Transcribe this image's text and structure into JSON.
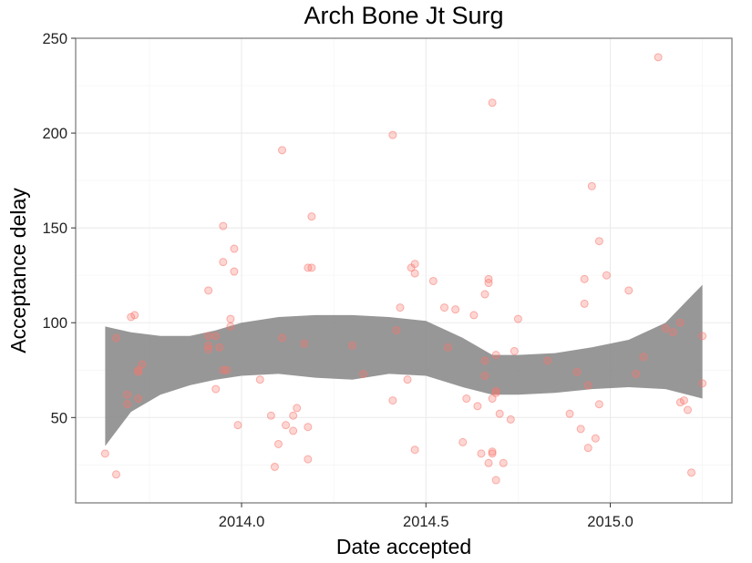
{
  "chart_data": {
    "type": "scatter",
    "title": "Arch Bone Jt Surg",
    "xlabel": "Date accepted",
    "ylabel": "Acceptance delay",
    "xlim": [
      2013.55,
      2015.33
    ],
    "ylim": [
      5,
      250
    ],
    "xticks": [
      2014.0,
      2014.5,
      2015.0
    ],
    "xtick_labels": [
      "2014.0",
      "2014.5",
      "2015.0"
    ],
    "yticks": [
      50,
      100,
      150,
      200,
      250
    ],
    "ytick_labels": [
      "50",
      "100",
      "150",
      "200",
      "250"
    ],
    "grid": true,
    "legend": "none",
    "point_color": "#F8766D",
    "ribbon_color": "#8C8C8C",
    "points": [
      {
        "x": 2013.63,
        "y": 31
      },
      {
        "x": 2013.66,
        "y": 20
      },
      {
        "x": 2013.66,
        "y": 92
      },
      {
        "x": 2013.69,
        "y": 62
      },
      {
        "x": 2013.69,
        "y": 57
      },
      {
        "x": 2013.7,
        "y": 103
      },
      {
        "x": 2013.71,
        "y": 104
      },
      {
        "x": 2013.72,
        "y": 74
      },
      {
        "x": 2013.72,
        "y": 75
      },
      {
        "x": 2013.72,
        "y": 60
      },
      {
        "x": 2013.73,
        "y": 78
      },
      {
        "x": 2013.91,
        "y": 117
      },
      {
        "x": 2013.91,
        "y": 93
      },
      {
        "x": 2013.91,
        "y": 88
      },
      {
        "x": 2013.91,
        "y": 86
      },
      {
        "x": 2013.93,
        "y": 65
      },
      {
        "x": 2013.93,
        "y": 93
      },
      {
        "x": 2013.94,
        "y": 87
      },
      {
        "x": 2013.95,
        "y": 132
      },
      {
        "x": 2013.95,
        "y": 151
      },
      {
        "x": 2013.95,
        "y": 75
      },
      {
        "x": 2013.96,
        "y": 75
      },
      {
        "x": 2013.97,
        "y": 102
      },
      {
        "x": 2013.97,
        "y": 98
      },
      {
        "x": 2013.98,
        "y": 139
      },
      {
        "x": 2013.98,
        "y": 127
      },
      {
        "x": 2013.99,
        "y": 46
      },
      {
        "x": 2014.05,
        "y": 70
      },
      {
        "x": 2014.08,
        "y": 51
      },
      {
        "x": 2014.09,
        "y": 24
      },
      {
        "x": 2014.1,
        "y": 36
      },
      {
        "x": 2014.11,
        "y": 191
      },
      {
        "x": 2014.11,
        "y": 92
      },
      {
        "x": 2014.12,
        "y": 46
      },
      {
        "x": 2014.14,
        "y": 51
      },
      {
        "x": 2014.14,
        "y": 43
      },
      {
        "x": 2014.15,
        "y": 55
      },
      {
        "x": 2014.17,
        "y": 89
      },
      {
        "x": 2014.18,
        "y": 129
      },
      {
        "x": 2014.18,
        "y": 45
      },
      {
        "x": 2014.18,
        "y": 28
      },
      {
        "x": 2014.19,
        "y": 156
      },
      {
        "x": 2014.19,
        "y": 129
      },
      {
        "x": 2014.3,
        "y": 88
      },
      {
        "x": 2014.33,
        "y": 73
      },
      {
        "x": 2014.41,
        "y": 199
      },
      {
        "x": 2014.41,
        "y": 59
      },
      {
        "x": 2014.42,
        "y": 96
      },
      {
        "x": 2014.43,
        "y": 108
      },
      {
        "x": 2014.45,
        "y": 70
      },
      {
        "x": 2014.46,
        "y": 129
      },
      {
        "x": 2014.47,
        "y": 131
      },
      {
        "x": 2014.47,
        "y": 126
      },
      {
        "x": 2014.47,
        "y": 33
      },
      {
        "x": 2014.52,
        "y": 122
      },
      {
        "x": 2014.55,
        "y": 108
      },
      {
        "x": 2014.56,
        "y": 87
      },
      {
        "x": 2014.58,
        "y": 107
      },
      {
        "x": 2014.6,
        "y": 37
      },
      {
        "x": 2014.61,
        "y": 60
      },
      {
        "x": 2014.63,
        "y": 104
      },
      {
        "x": 2014.64,
        "y": 56
      },
      {
        "x": 2014.65,
        "y": 31
      },
      {
        "x": 2014.66,
        "y": 72
      },
      {
        "x": 2014.66,
        "y": 80
      },
      {
        "x": 2014.66,
        "y": 115
      },
      {
        "x": 2014.67,
        "y": 121
      },
      {
        "x": 2014.67,
        "y": 123
      },
      {
        "x": 2014.67,
        "y": 26
      },
      {
        "x": 2014.68,
        "y": 216
      },
      {
        "x": 2014.68,
        "y": 60
      },
      {
        "x": 2014.68,
        "y": 32
      },
      {
        "x": 2014.68,
        "y": 31
      },
      {
        "x": 2014.69,
        "y": 63
      },
      {
        "x": 2014.69,
        "y": 64
      },
      {
        "x": 2014.69,
        "y": 83
      },
      {
        "x": 2014.69,
        "y": 17
      },
      {
        "x": 2014.7,
        "y": 52
      },
      {
        "x": 2014.71,
        "y": 26
      },
      {
        "x": 2014.73,
        "y": 49
      },
      {
        "x": 2014.74,
        "y": 85
      },
      {
        "x": 2014.75,
        "y": 102
      },
      {
        "x": 2014.83,
        "y": 80
      },
      {
        "x": 2014.89,
        "y": 52
      },
      {
        "x": 2014.91,
        "y": 74
      },
      {
        "x": 2014.92,
        "y": 44
      },
      {
        "x": 2014.93,
        "y": 123
      },
      {
        "x": 2014.93,
        "y": 110
      },
      {
        "x": 2014.94,
        "y": 34
      },
      {
        "x": 2014.94,
        "y": 67
      },
      {
        "x": 2014.95,
        "y": 172
      },
      {
        "x": 2014.96,
        "y": 39
      },
      {
        "x": 2014.97,
        "y": 143
      },
      {
        "x": 2014.97,
        "y": 57
      },
      {
        "x": 2014.99,
        "y": 125
      },
      {
        "x": 2015.05,
        "y": 117
      },
      {
        "x": 2015.07,
        "y": 73
      },
      {
        "x": 2015.09,
        "y": 82
      },
      {
        "x": 2015.13,
        "y": 240
      },
      {
        "x": 2015.15,
        "y": 97
      },
      {
        "x": 2015.17,
        "y": 95
      },
      {
        "x": 2015.19,
        "y": 100
      },
      {
        "x": 2015.19,
        "y": 58
      },
      {
        "x": 2015.2,
        "y": 59
      },
      {
        "x": 2015.21,
        "y": 54
      },
      {
        "x": 2015.22,
        "y": 21
      },
      {
        "x": 2015.25,
        "y": 93
      },
      {
        "x": 2015.25,
        "y": 68
      }
    ],
    "smooth_ribbon": {
      "x": [
        2013.63,
        2013.7,
        2013.78,
        2013.86,
        2013.93,
        2014.0,
        2014.1,
        2014.2,
        2014.3,
        2014.4,
        2014.5,
        2014.6,
        2014.68,
        2014.75,
        2014.85,
        2014.95,
        2015.05,
        2015.15,
        2015.25
      ],
      "lower": [
        35,
        53,
        62,
        67,
        70,
        72,
        73,
        71,
        70,
        73,
        72,
        66,
        62,
        62,
        63,
        65,
        66,
        65,
        60
      ],
      "upper": [
        98,
        95,
        93,
        93,
        96,
        100,
        103,
        104,
        104,
        103,
        101,
        92,
        83,
        83,
        84,
        87,
        91,
        100,
        120
      ]
    }
  }
}
